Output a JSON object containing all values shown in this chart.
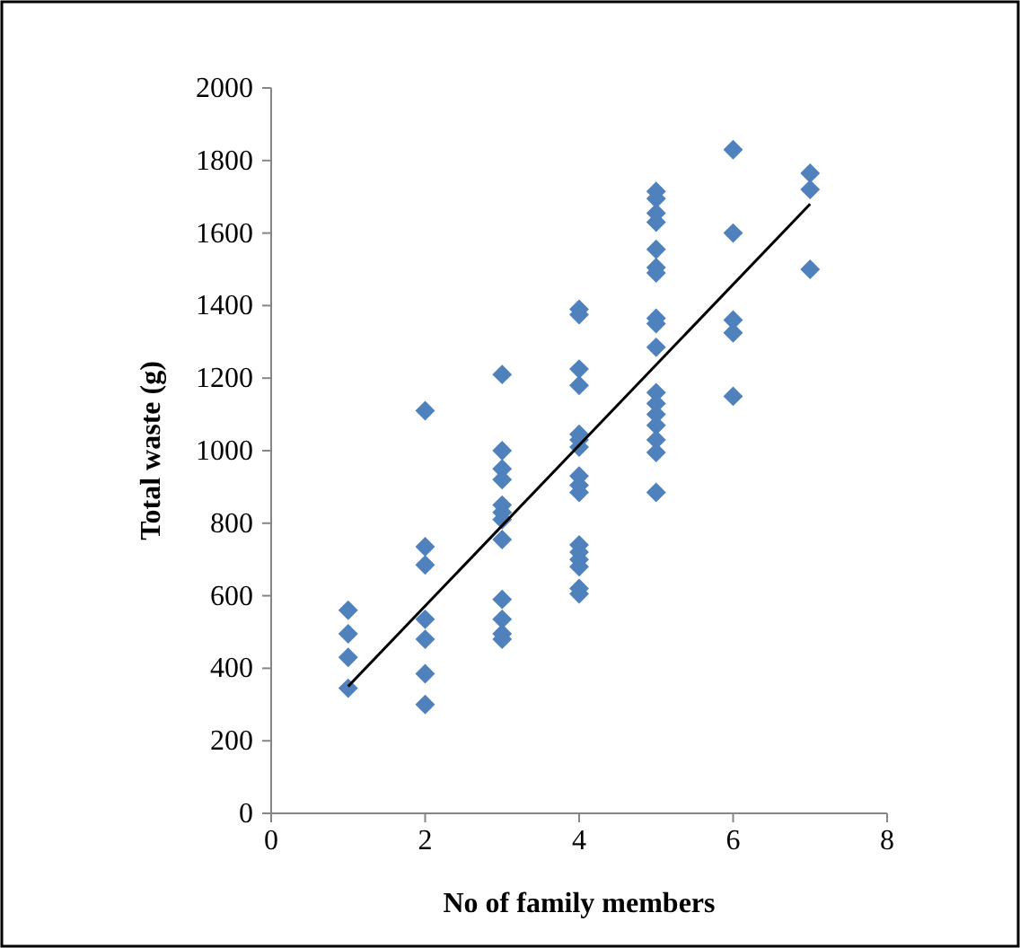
{
  "chart_data": {
    "type": "scatter",
    "xlabel": "No of family members",
    "ylabel": "Total waste (g)",
    "xlim": [
      0,
      8
    ],
    "xticks": [
      0,
      2,
      4,
      6,
      8
    ],
    "ylim": [
      0,
      2000
    ],
    "yticks": [
      0,
      200,
      400,
      600,
      800,
      1000,
      1200,
      1400,
      1600,
      1800,
      2000
    ],
    "grid": false,
    "marker": "diamond",
    "series": [
      {
        "color": "#4f81bd",
        "x": [
          1,
          1,
          1,
          1,
          2,
          2,
          2,
          2,
          2,
          2,
          2,
          3,
          3,
          3,
          3,
          3,
          3,
          3,
          3,
          3,
          3,
          3,
          3,
          4,
          4,
          4,
          4,
          4,
          4,
          4,
          4,
          4,
          4,
          4,
          4,
          4,
          4,
          4,
          4,
          5,
          5,
          5,
          5,
          5,
          5,
          5,
          5,
          5,
          5,
          5,
          5,
          5,
          5,
          5,
          5,
          5,
          6,
          6,
          6,
          6,
          6,
          7,
          7,
          7
        ],
        "values": [
          560,
          495,
          430,
          345,
          1110,
          735,
          685,
          535,
          480,
          385,
          300,
          1210,
          1000,
          950,
          920,
          850,
          830,
          810,
          755,
          590,
          535,
          495,
          480,
          1390,
          1375,
          1225,
          1180,
          1045,
          1030,
          1010,
          930,
          905,
          885,
          740,
          720,
          700,
          680,
          620,
          605,
          1715,
          1695,
          1655,
          1630,
          1555,
          1505,
          1490,
          1365,
          1350,
          1285,
          1160,
          1130,
          1100,
          1070,
          1030,
          995,
          885,
          1830,
          1600,
          1360,
          1325,
          1150,
          1765,
          1720,
          1500
        ]
      },
      {
        "type": "line",
        "color": "#000000",
        "x": [
          1,
          7
        ],
        "values": [
          350,
          1680
        ],
        "marker": "none"
      }
    ]
  }
}
